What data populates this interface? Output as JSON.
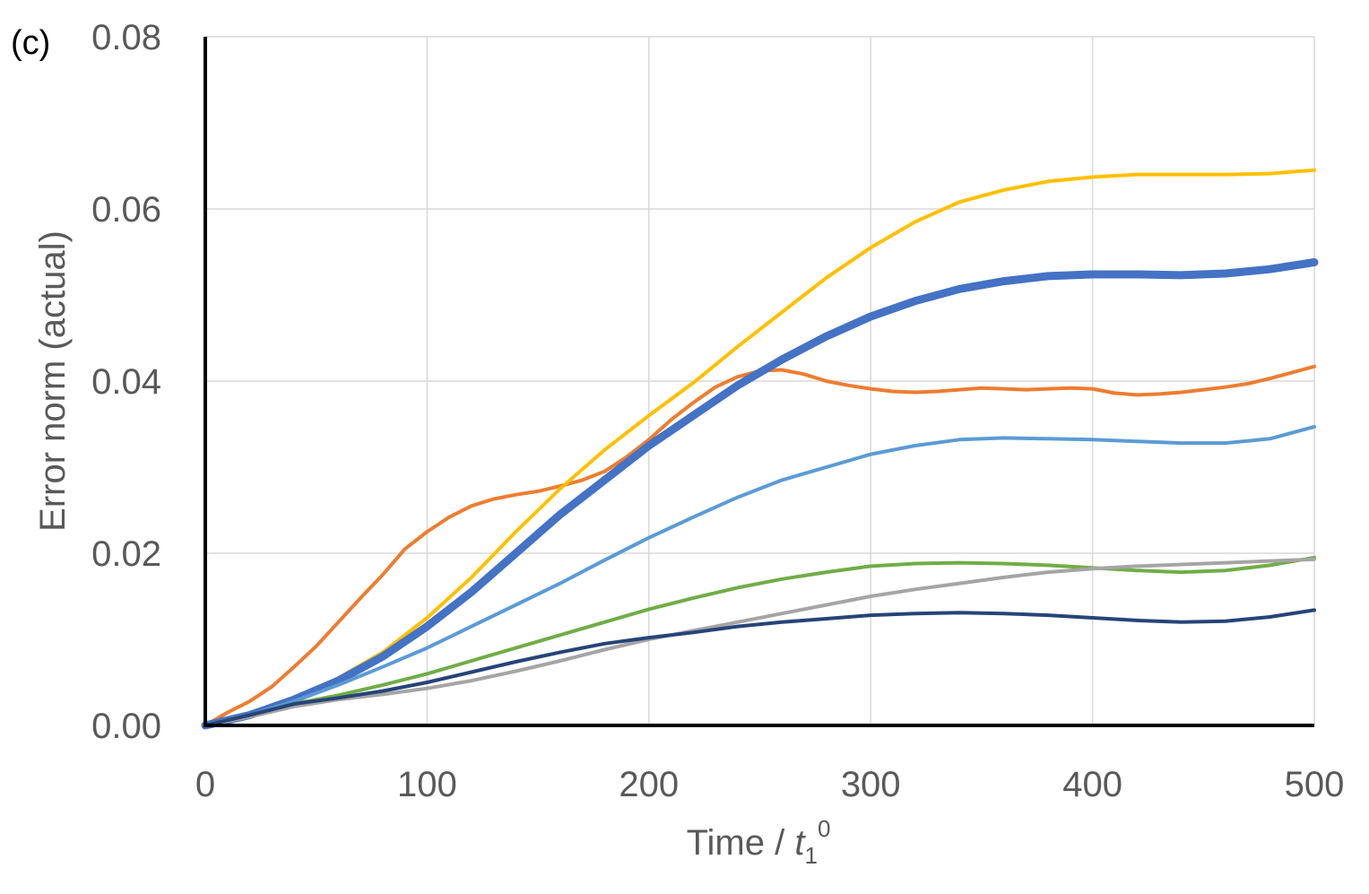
{
  "chart_data": {
    "type": "line",
    "panel_label": "(c)",
    "title": "",
    "xlabel": {
      "prefix": "Time / ",
      "var": "t",
      "sub": "1",
      "sup": "0"
    },
    "ylabel": "Error norm (actual)",
    "xlim": [
      0,
      500
    ],
    "ylim": [
      0,
      0.08
    ],
    "xticks": [
      0,
      100,
      200,
      300,
      400,
      500
    ],
    "yticks": [
      0.0,
      0.02,
      0.04,
      0.06,
      0.08
    ],
    "xtick_labels": [
      "0",
      "100",
      "200",
      "300",
      "400",
      "500"
    ],
    "ytick_labels": [
      "0.00",
      "0.02",
      "0.04",
      "0.06",
      "0.08"
    ],
    "grid": true,
    "series": [
      {
        "name": "orange",
        "color": "#ED7D31",
        "width": 4,
        "points": [
          [
            0,
            0
          ],
          [
            10,
            0.0015
          ],
          [
            20,
            0.0028
          ],
          [
            30,
            0.0045
          ],
          [
            40,
            0.0068
          ],
          [
            50,
            0.0092
          ],
          [
            60,
            0.012
          ],
          [
            70,
            0.0148
          ],
          [
            80,
            0.0175
          ],
          [
            90,
            0.0205
          ],
          [
            100,
            0.0225
          ],
          [
            110,
            0.0242
          ],
          [
            120,
            0.0255
          ],
          [
            130,
            0.0263
          ],
          [
            140,
            0.0268
          ],
          [
            150,
            0.0272
          ],
          [
            160,
            0.0278
          ],
          [
            170,
            0.0285
          ],
          [
            180,
            0.0295
          ],
          [
            190,
            0.0312
          ],
          [
            200,
            0.0332
          ],
          [
            210,
            0.0355
          ],
          [
            220,
            0.0375
          ],
          [
            230,
            0.0393
          ],
          [
            240,
            0.0405
          ],
          [
            250,
            0.0412
          ],
          [
            260,
            0.0413
          ],
          [
            270,
            0.0408
          ],
          [
            280,
            0.04
          ],
          [
            290,
            0.0395
          ],
          [
            300,
            0.0391
          ],
          [
            310,
            0.0388
          ],
          [
            320,
            0.0387
          ],
          [
            330,
            0.0388
          ],
          [
            340,
            0.039
          ],
          [
            350,
            0.0392
          ],
          [
            360,
            0.0391
          ],
          [
            370,
            0.039
          ],
          [
            380,
            0.0391
          ],
          [
            390,
            0.0392
          ],
          [
            400,
            0.0391
          ],
          [
            410,
            0.0386
          ],
          [
            420,
            0.0384
          ],
          [
            430,
            0.0385
          ],
          [
            440,
            0.0387
          ],
          [
            450,
            0.039
          ],
          [
            460,
            0.0393
          ],
          [
            470,
            0.0397
          ],
          [
            480,
            0.0403
          ],
          [
            490,
            0.041
          ],
          [
            500,
            0.0417
          ]
        ]
      },
      {
        "name": "yellow",
        "color": "#FFC000",
        "width": 4,
        "points": [
          [
            0,
            0
          ],
          [
            20,
            0.0012
          ],
          [
            40,
            0.0032
          ],
          [
            60,
            0.0055
          ],
          [
            80,
            0.0085
          ],
          [
            100,
            0.0125
          ],
          [
            120,
            0.0172
          ],
          [
            140,
            0.0225
          ],
          [
            160,
            0.0275
          ],
          [
            180,
            0.032
          ],
          [
            200,
            0.036
          ],
          [
            220,
            0.0398
          ],
          [
            240,
            0.044
          ],
          [
            260,
            0.048
          ],
          [
            280,
            0.052
          ],
          [
            300,
            0.0555
          ],
          [
            320,
            0.0585
          ],
          [
            340,
            0.0608
          ],
          [
            360,
            0.0622
          ],
          [
            380,
            0.0632
          ],
          [
            400,
            0.0637
          ],
          [
            420,
            0.064
          ],
          [
            440,
            0.064
          ],
          [
            460,
            0.064
          ],
          [
            480,
            0.0641
          ],
          [
            500,
            0.0645
          ]
        ]
      },
      {
        "name": "blue-thick",
        "color": "#4472C4",
        "width": 9,
        "points": [
          [
            0,
            0
          ],
          [
            20,
            0.0012
          ],
          [
            40,
            0.003
          ],
          [
            60,
            0.0052
          ],
          [
            80,
            0.008
          ],
          [
            100,
            0.0115
          ],
          [
            120,
            0.0155
          ],
          [
            140,
            0.02
          ],
          [
            160,
            0.0245
          ],
          [
            180,
            0.0285
          ],
          [
            200,
            0.0325
          ],
          [
            220,
            0.036
          ],
          [
            240,
            0.0395
          ],
          [
            260,
            0.0425
          ],
          [
            280,
            0.0452
          ],
          [
            300,
            0.0475
          ],
          [
            320,
            0.0493
          ],
          [
            340,
            0.0507
          ],
          [
            360,
            0.0516
          ],
          [
            380,
            0.0522
          ],
          [
            400,
            0.0524
          ],
          [
            420,
            0.0524
          ],
          [
            440,
            0.0523
          ],
          [
            460,
            0.0525
          ],
          [
            480,
            0.053
          ],
          [
            500,
            0.0538
          ]
        ]
      },
      {
        "name": "light-blue",
        "color": "#5B9BD5",
        "width": 4,
        "points": [
          [
            0,
            0
          ],
          [
            20,
            0.0012
          ],
          [
            40,
            0.0028
          ],
          [
            60,
            0.0047
          ],
          [
            80,
            0.0068
          ],
          [
            100,
            0.009
          ],
          [
            120,
            0.0115
          ],
          [
            140,
            0.014
          ],
          [
            160,
            0.0165
          ],
          [
            180,
            0.0192
          ],
          [
            200,
            0.0218
          ],
          [
            220,
            0.0242
          ],
          [
            240,
            0.0265
          ],
          [
            260,
            0.0285
          ],
          [
            280,
            0.03
          ],
          [
            300,
            0.0315
          ],
          [
            320,
            0.0325
          ],
          [
            340,
            0.0332
          ],
          [
            360,
            0.0334
          ],
          [
            380,
            0.0333
          ],
          [
            400,
            0.0332
          ],
          [
            420,
            0.033
          ],
          [
            440,
            0.0328
          ],
          [
            460,
            0.0328
          ],
          [
            480,
            0.0333
          ],
          [
            500,
            0.0347
          ]
        ]
      },
      {
        "name": "green",
        "color": "#70AD47",
        "width": 4,
        "points": [
          [
            0,
            0
          ],
          [
            20,
            0.0012
          ],
          [
            40,
            0.0025
          ],
          [
            60,
            0.0035
          ],
          [
            80,
            0.0047
          ],
          [
            100,
            0.006
          ],
          [
            120,
            0.0075
          ],
          [
            140,
            0.009
          ],
          [
            160,
            0.0105
          ],
          [
            180,
            0.012
          ],
          [
            200,
            0.0135
          ],
          [
            220,
            0.0148
          ],
          [
            240,
            0.016
          ],
          [
            260,
            0.017
          ],
          [
            280,
            0.0178
          ],
          [
            300,
            0.0185
          ],
          [
            320,
            0.0188
          ],
          [
            340,
            0.0189
          ],
          [
            360,
            0.0188
          ],
          [
            380,
            0.0186
          ],
          [
            400,
            0.0183
          ],
          [
            420,
            0.018
          ],
          [
            440,
            0.0178
          ],
          [
            460,
            0.018
          ],
          [
            480,
            0.0186
          ],
          [
            500,
            0.0195
          ]
        ]
      },
      {
        "name": "gray",
        "color": "#A5A5A5",
        "width": 4,
        "points": [
          [
            0,
            0
          ],
          [
            20,
            0.001
          ],
          [
            40,
            0.0022
          ],
          [
            60,
            0.003
          ],
          [
            80,
            0.0036
          ],
          [
            100,
            0.0043
          ],
          [
            120,
            0.0052
          ],
          [
            140,
            0.0063
          ],
          [
            160,
            0.0075
          ],
          [
            180,
            0.0088
          ],
          [
            200,
            0.01
          ],
          [
            220,
            0.011
          ],
          [
            240,
            0.012
          ],
          [
            260,
            0.013
          ],
          [
            280,
            0.014
          ],
          [
            300,
            0.015
          ],
          [
            320,
            0.0158
          ],
          [
            340,
            0.0165
          ],
          [
            360,
            0.0172
          ],
          [
            380,
            0.0178
          ],
          [
            400,
            0.0182
          ],
          [
            420,
            0.0185
          ],
          [
            440,
            0.0187
          ],
          [
            460,
            0.0189
          ],
          [
            480,
            0.0191
          ],
          [
            500,
            0.0193
          ]
        ]
      },
      {
        "name": "dark-navy",
        "color": "#264478",
        "width": 4,
        "points": [
          [
            0,
            0
          ],
          [
            20,
            0.0012
          ],
          [
            40,
            0.0025
          ],
          [
            60,
            0.0032
          ],
          [
            80,
            0.004
          ],
          [
            100,
            0.005
          ],
          [
            120,
            0.0062
          ],
          [
            140,
            0.0074
          ],
          [
            160,
            0.0085
          ],
          [
            180,
            0.0095
          ],
          [
            200,
            0.0102
          ],
          [
            220,
            0.0108
          ],
          [
            240,
            0.0115
          ],
          [
            260,
            0.012
          ],
          [
            280,
            0.0124
          ],
          [
            300,
            0.0128
          ],
          [
            320,
            0.013
          ],
          [
            340,
            0.0131
          ],
          [
            360,
            0.013
          ],
          [
            380,
            0.0128
          ],
          [
            400,
            0.0125
          ],
          [
            420,
            0.0122
          ],
          [
            440,
            0.012
          ],
          [
            460,
            0.0121
          ],
          [
            480,
            0.0126
          ],
          [
            500,
            0.0134
          ]
        ]
      }
    ]
  }
}
